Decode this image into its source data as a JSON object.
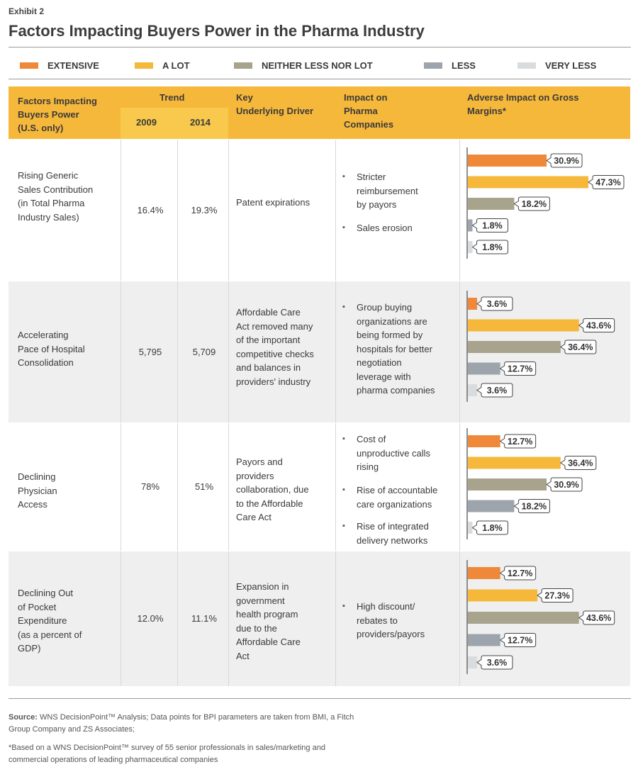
{
  "header": {
    "exhibit": "Exhibit 2",
    "title": "Factors Impacting Buyers Power in the Pharma Industry"
  },
  "legend": [
    {
      "label": "EXTENSIVE",
      "color": "#f0883a"
    },
    {
      "label": "A LOT",
      "color": "#f6b83a"
    },
    {
      "label": "NEITHER LESS NOR LOT",
      "color": "#a8a38c"
    },
    {
      "label": "LESS",
      "color": "#9ea4ab"
    },
    {
      "label": "VERY LESS",
      "color": "#d9dcdf"
    }
  ],
  "columns": {
    "factor": [
      "Factors Impacting",
      "Buyers Power",
      "(U.S. only)"
    ],
    "trend": "Trend",
    "y2009": "2009",
    "y2014": "2014",
    "driver": [
      "Key",
      "Underlying Driver"
    ],
    "impact": [
      "Impact on",
      "Pharma",
      "Companies"
    ],
    "adverse": [
      "Adverse Impact on Gross",
      "Margins*"
    ]
  },
  "rows": [
    {
      "factor": [
        "Rising Generic",
        "Sales Contribution",
        "(in Total Pharma",
        "Industry Sales)"
      ],
      "v2009": "16.4%",
      "v2014": "19.3%",
      "driver": [
        "Patent expirations"
      ],
      "impacts": [
        [
          "Stricter",
          "reimbursement",
          "by payors"
        ],
        [
          "Sales erosion"
        ]
      ]
    },
    {
      "factor": [
        "Accelerating",
        "Pace of Hospital",
        "Consolidation"
      ],
      "v2009": "5,795",
      "v2014": "5,709",
      "driver": [
        "Affordable Care",
        "Act removed many",
        "of the important",
        "competitive checks",
        "and balances in",
        "providers' industry"
      ],
      "impacts": [
        [
          "Group buying",
          "organizations are",
          "being formed by",
          "hospitals for better",
          "negotiation",
          "leverage with",
          "pharma companies"
        ]
      ]
    },
    {
      "factor": [
        "Declining",
        "Physician",
        "Access"
      ],
      "v2009": "78%",
      "v2014": "51%",
      "driver": [
        "Payors and",
        "providers",
        "collaboration, due",
        "to the Affordable",
        "Care Act"
      ],
      "impacts": [
        [
          "Cost of",
          "unproductive calls",
          "rising"
        ],
        [
          "Rise of accountable",
          "care organizations"
        ],
        [
          "Rise of integrated",
          "delivery networks"
        ]
      ]
    },
    {
      "factor": [
        "Declining Out",
        "of Pocket",
        "Expenditure",
        "(as a percent of",
        "GDP)"
      ],
      "v2009": "12.0%",
      "v2014": "11.1%",
      "driver": [
        "Expansion in",
        "government",
        "health program",
        "due to the",
        "Affordable Care",
        "Act"
      ],
      "impacts": [
        [
          "High discount/",
          "rebates to",
          "providers/payors"
        ]
      ]
    }
  ],
  "chart_data": {
    "type": "bar",
    "orientation": "horizontal",
    "title": "Adverse Impact on Gross Margins*",
    "categories": [
      "Rising Generic Sales Contribution (in Total Pharma Industry Sales)",
      "Accelerating Pace of Hospital Consolidation",
      "Declining Physician Access",
      "Declining Out of Pocket Expenditure (as a percent of GDP)"
    ],
    "series": [
      {
        "name": "EXTENSIVE",
        "color": "#f0883a",
        "values": [
          30.9,
          3.6,
          12.7,
          12.7
        ]
      },
      {
        "name": "A LOT",
        "color": "#f6b83a",
        "values": [
          47.3,
          43.6,
          36.4,
          27.3
        ]
      },
      {
        "name": "NEITHER LESS NOR LOT",
        "color": "#a8a38c",
        "values": [
          18.2,
          36.4,
          30.9,
          43.6
        ]
      },
      {
        "name": "LESS",
        "color": "#9ea4ab",
        "values": [
          1.8,
          12.7,
          18.2,
          12.7
        ]
      },
      {
        "name": "VERY LESS",
        "color": "#d9dcdf",
        "values": [
          1.8,
          3.6,
          1.8,
          3.6
        ]
      }
    ],
    "labels": [
      [
        "30.9%",
        "47.3%",
        "18.2%",
        "1.8%",
        "1.8%"
      ],
      [
        "3.6%",
        "43.6%",
        "36.4%",
        "12.7%",
        "3.6%"
      ],
      [
        "12.7%",
        "36.4%",
        "30.9%",
        "18.2%",
        "1.8%"
      ],
      [
        "12.7%",
        "27.3%",
        "43.6%",
        "12.7%",
        "3.6%"
      ]
    ],
    "unit": "%",
    "xlim": [
      0,
      47.3
    ]
  },
  "footer": {
    "source_label": "Source:",
    "source_lines": [
      "WNS DecisionPoint™ Analysis; Data points for BPI parameters are taken from BMI, a Fitch",
      "Group Company and ZS Associates;"
    ],
    "note_lines": [
      "*Based on a WNS DecisionPoint™ survey of 55 senior professionals in sales/marketing and",
      "commercial operations of leading pharmaceutical companies"
    ]
  }
}
